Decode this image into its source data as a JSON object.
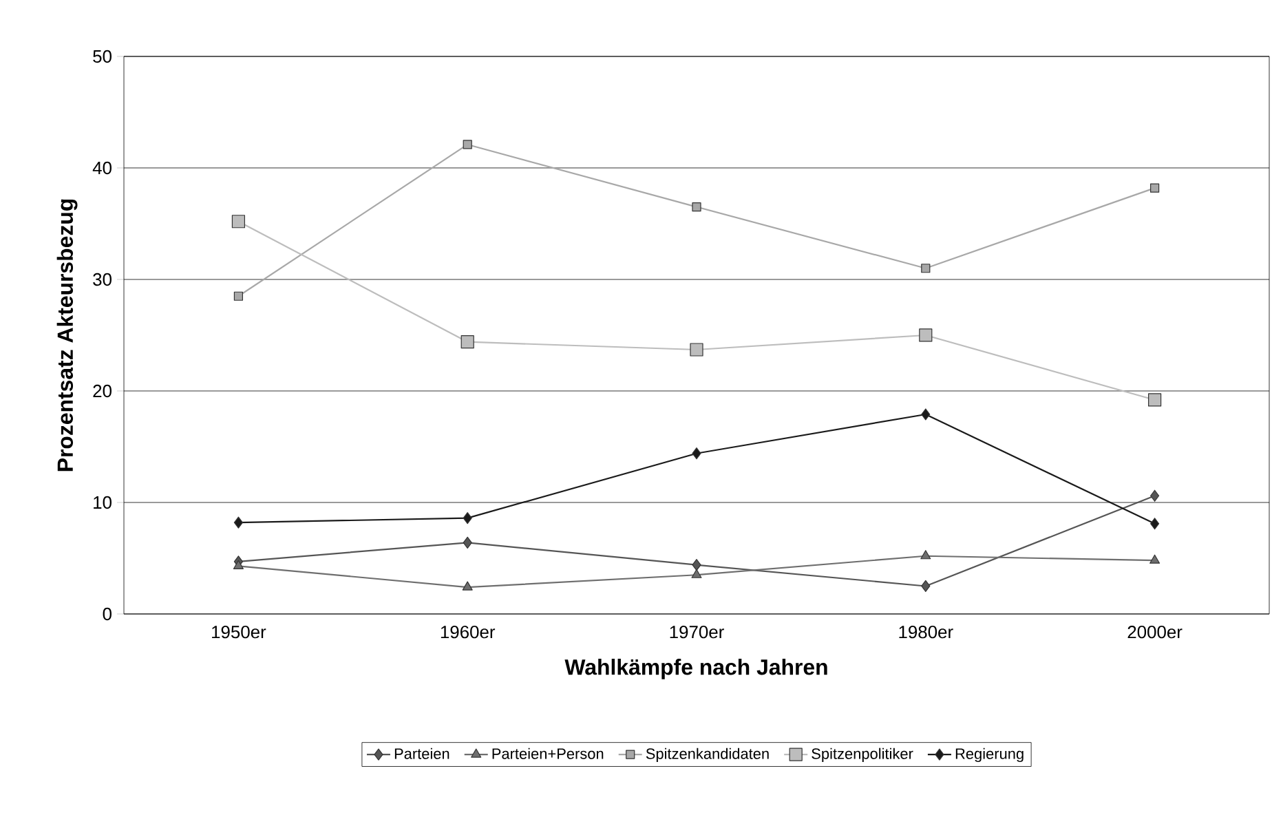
{
  "chart_data": {
    "type": "line",
    "xlabel": "Wahlkämpfe nach Jahren",
    "ylabel": "Prozentsatz Akteursbezug",
    "categories": [
      "1950er",
      "1960er",
      "1970er",
      "1980er",
      "2000er"
    ],
    "series": [
      {
        "name": "Parteien",
        "color": "#555555",
        "marker": "diamond",
        "values": [
          4.7,
          6.4,
          4.4,
          2.5,
          10.6
        ]
      },
      {
        "name": "Parteien+Person",
        "color": "#6e6e6e",
        "marker": "triangle",
        "values": [
          4.3,
          2.4,
          3.5,
          5.2,
          4.8
        ]
      },
      {
        "name": "Spitzenkandidaten",
        "color": "#a8a8a8",
        "marker": "square",
        "values": [
          28.5,
          42.1,
          36.5,
          31.0,
          38.2
        ]
      },
      {
        "name": "Spitzenpolitiker",
        "color": "#bdbdbd",
        "marker": "square",
        "values": [
          35.2,
          24.4,
          23.7,
          25.0,
          19.2
        ]
      },
      {
        "name": "Regierung",
        "color": "#1a1a1a",
        "marker": "diamond",
        "values": [
          8.2,
          8.6,
          14.4,
          17.9,
          8.1
        ]
      }
    ],
    "ylim": [
      0,
      50
    ],
    "yticks": [
      0,
      10,
      20,
      30,
      40,
      50
    ],
    "grid": "y",
    "legend": "bottom",
    "line_style": "solid"
  }
}
